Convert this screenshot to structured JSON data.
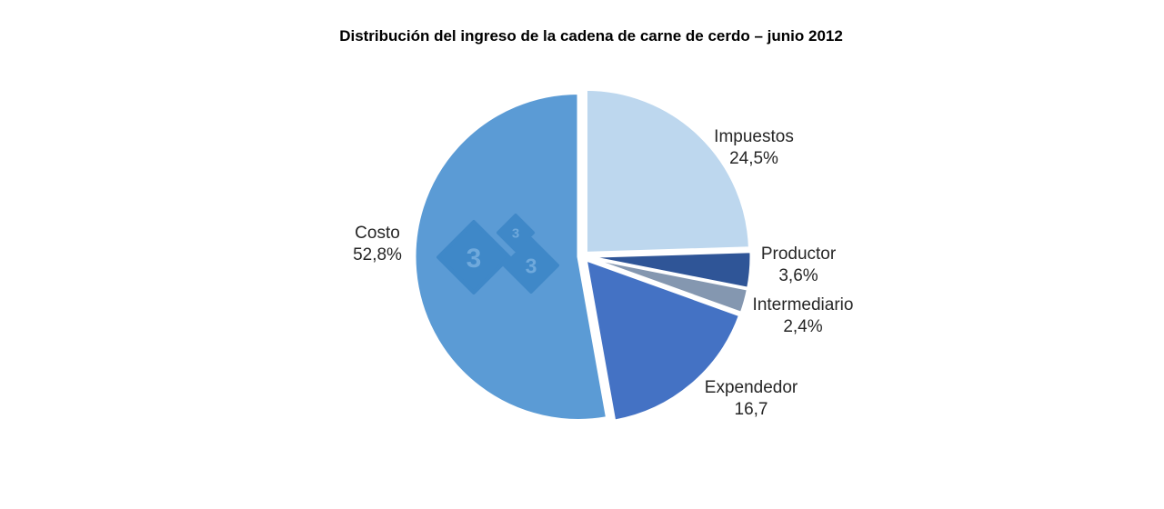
{
  "chart_data": {
    "type": "pie",
    "title": "Distribución del ingreso de la cadena de carne de cerdo – junio 2012",
    "slices": [
      {
        "name": "Impuestos",
        "value": 24.5,
        "label": "24,5%",
        "color": "#BDD7EE"
      },
      {
        "name": "Productor",
        "value": 3.6,
        "label": "3,6%",
        "color": "#2F5597"
      },
      {
        "name": "Intermediario",
        "value": 2.4,
        "label": "2,4%",
        "color": "#8497B0"
      },
      {
        "name": "Expendedor",
        "value": 16.7,
        "label": "16,7",
        "color": "#4472C4"
      },
      {
        "name": "Costo",
        "value": 52.8,
        "label": "52,8%",
        "color": "#5B9BD5"
      }
    ],
    "start_angle": "12 o'clock",
    "direction": "clockwise",
    "exploded": true,
    "legend": "none"
  },
  "watermark": {
    "text": "3 3 3",
    "color": "#3F88C8"
  }
}
